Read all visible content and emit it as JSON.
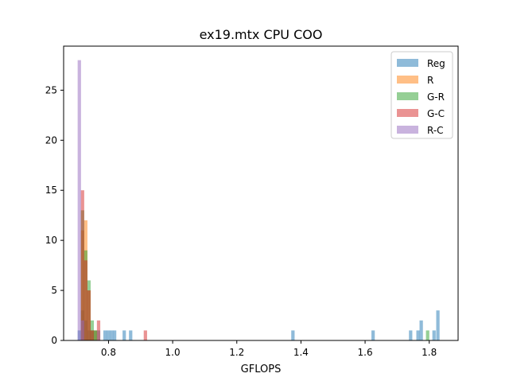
{
  "chart_data": {
    "type": "histogram",
    "title": "ex19.mtx CPU COO",
    "xlabel": "GFLOPS",
    "ylabel": "",
    "xlim": [
      0.66,
      1.89
    ],
    "ylim": [
      0,
      29.4
    ],
    "xticks": [
      0.8,
      1.0,
      1.2,
      1.4,
      1.6,
      1.8
    ],
    "xtick_labels": [
      "0.8",
      "1.0",
      "1.2",
      "1.4",
      "1.6",
      "1.8"
    ],
    "yticks": [
      0,
      5,
      10,
      15,
      20,
      25
    ],
    "ytick_labels": [
      "0",
      "5",
      "10",
      "15",
      "20",
      "25"
    ],
    "grid": false,
    "legend_position": "top-right",
    "alpha": 0.5,
    "series": [
      {
        "name": "Reg",
        "color": "#1f77b4",
        "bins": [
          {
            "x": 0.709,
            "count": 1
          },
          {
            "x": 0.719,
            "count": 3
          },
          {
            "x": 0.729,
            "count": 2
          },
          {
            "x": 0.739,
            "count": 1
          },
          {
            "x": 0.749,
            "count": 1
          },
          {
            "x": 0.759,
            "count": 1
          },
          {
            "x": 0.769,
            "count": 1
          },
          {
            "x": 0.789,
            "count": 1
          },
          {
            "x": 0.799,
            "count": 1
          },
          {
            "x": 0.809,
            "count": 1
          },
          {
            "x": 0.819,
            "count": 1
          },
          {
            "x": 0.849,
            "count": 1
          },
          {
            "x": 0.869,
            "count": 1
          },
          {
            "x": 1.375,
            "count": 1
          },
          {
            "x": 1.625,
            "count": 1
          },
          {
            "x": 1.742,
            "count": 1
          },
          {
            "x": 1.765,
            "count": 1
          },
          {
            "x": 1.775,
            "count": 2
          },
          {
            "x": 1.815,
            "count": 1
          },
          {
            "x": 1.827,
            "count": 3
          }
        ]
      },
      {
        "name": "R",
        "color": "#ff7f0e",
        "bins": [
          {
            "x": 0.719,
            "count": 11
          },
          {
            "x": 0.729,
            "count": 12
          },
          {
            "x": 0.739,
            "count": 5
          },
          {
            "x": 0.749,
            "count": 1
          },
          {
            "x": 0.759,
            "count": 1
          }
        ]
      },
      {
        "name": "G-R",
        "color": "#2ca02c",
        "bins": [
          {
            "x": 0.719,
            "count": 13
          },
          {
            "x": 0.729,
            "count": 9
          },
          {
            "x": 0.739,
            "count": 6
          },
          {
            "x": 0.749,
            "count": 2
          },
          {
            "x": 0.759,
            "count": 1
          },
          {
            "x": 1.795,
            "count": 1
          }
        ]
      },
      {
        "name": "G-C",
        "color": "#d62728",
        "bins": [
          {
            "x": 0.719,
            "count": 15
          },
          {
            "x": 0.729,
            "count": 8
          },
          {
            "x": 0.739,
            "count": 5
          },
          {
            "x": 0.749,
            "count": 1
          },
          {
            "x": 0.769,
            "count": 2
          },
          {
            "x": 0.915,
            "count": 1
          }
        ]
      },
      {
        "name": "R-C",
        "color": "#9467bd",
        "bins": [
          {
            "x": 0.709,
            "count": 28
          },
          {
            "x": 0.719,
            "count": 2
          }
        ]
      }
    ]
  }
}
